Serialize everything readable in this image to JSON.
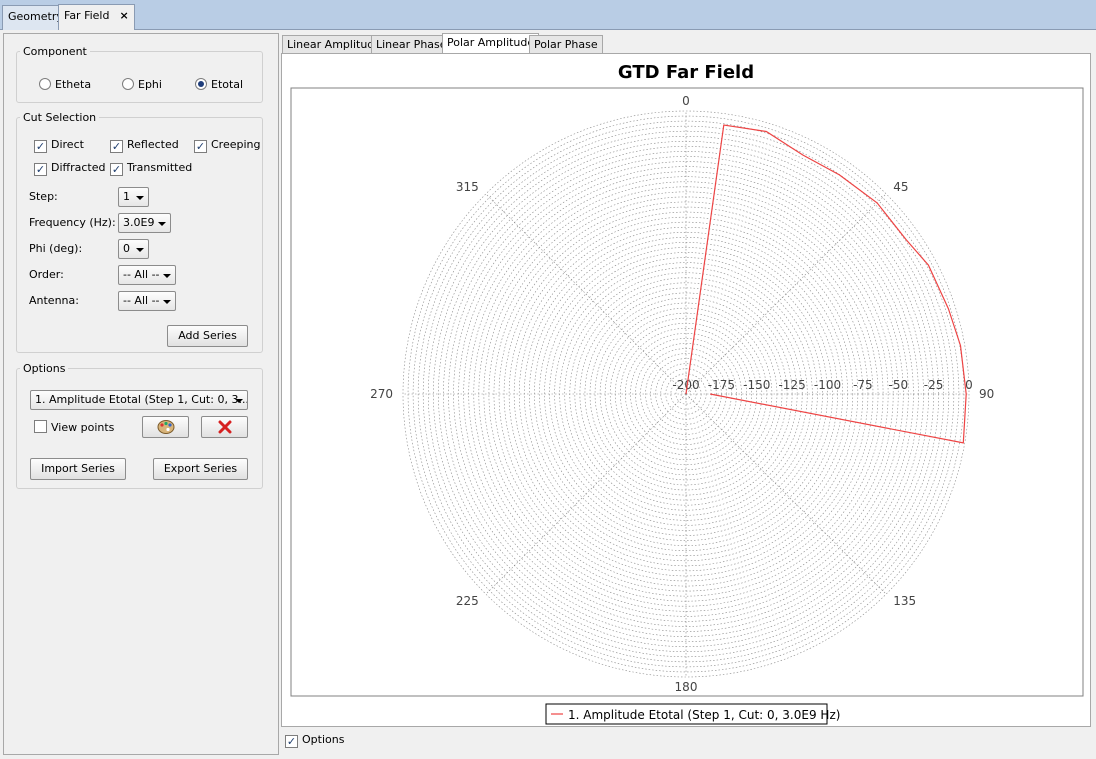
{
  "top_tabs": [
    "Geometry",
    "Far Field"
  ],
  "top_close": "×",
  "component": {
    "legend": "Component",
    "options": [
      "Etheta",
      "Ephi",
      "Etotal"
    ],
    "selected": "Etotal"
  },
  "cut_selection": {
    "legend": "Cut Selection",
    "checks": [
      "Direct",
      "Reflected",
      "Creeping",
      "Diffracted",
      "Transmitted"
    ],
    "step_label": "Step:",
    "step_value": "1",
    "freq_label": "Frequency (Hz):",
    "freq_value": "3.0E9",
    "phi_label": "Phi (deg):",
    "phi_value": "0",
    "order_label": "Order:",
    "order_value": "-- All --",
    "antenna_label": "Antenna:",
    "antenna_value": "-- All --",
    "add_series": "Add Series"
  },
  "options_panel": {
    "legend": "Options",
    "series_select": "1. Amplitude Etotal (Step 1, Cut: 0, 3...",
    "view_points": "View points",
    "import_series": "Import Series",
    "export_series": "Export Series"
  },
  "chart_tabs": [
    "Linear Amplitude",
    "Linear Phase",
    "Polar Amplitude",
    "Polar Phase"
  ],
  "active_chart_tab": "Polar Amplitude",
  "bottom_options": "Options",
  "colors": {
    "series": "#ee4444",
    "grid": "#888888",
    "topbar": "#b9cde5"
  },
  "chart_data": {
    "type": "polar-line",
    "title": "GTD Far Field",
    "angle_labels": [
      "0",
      "45",
      "90",
      "135",
      "180",
      "225",
      "270",
      "315"
    ],
    "radial_ticks": [
      "-200",
      "-175",
      "-150",
      "-125",
      "-100",
      "-75",
      "-50",
      "-25",
      "0"
    ],
    "radial_range": [
      -200,
      0
    ],
    "angle_direction": "clockwise, 0 at top",
    "grid": true,
    "legend_position": "bottom-center",
    "series": [
      {
        "name": "1. Amplitude Etotal (Step 1, Cut: 0, 3.0E9 Hz)",
        "points": [
          {
            "angle": 90,
            "r": -200
          },
          {
            "angle": 8,
            "r": -8
          },
          {
            "angle": 17,
            "r": -6
          },
          {
            "angle": 26,
            "r": -12
          },
          {
            "angle": 35,
            "r": -11
          },
          {
            "angle": 45,
            "r": -9
          },
          {
            "angle": 55,
            "r": -10
          },
          {
            "angle": 62,
            "r": -6
          },
          {
            "angle": 72,
            "r": -5
          },
          {
            "angle": 80,
            "r": -3
          },
          {
            "angle": 90,
            "r": -2
          },
          {
            "angle": 100,
            "r": -1
          },
          {
            "angle": 90,
            "r": -183
          }
        ]
      }
    ]
  }
}
